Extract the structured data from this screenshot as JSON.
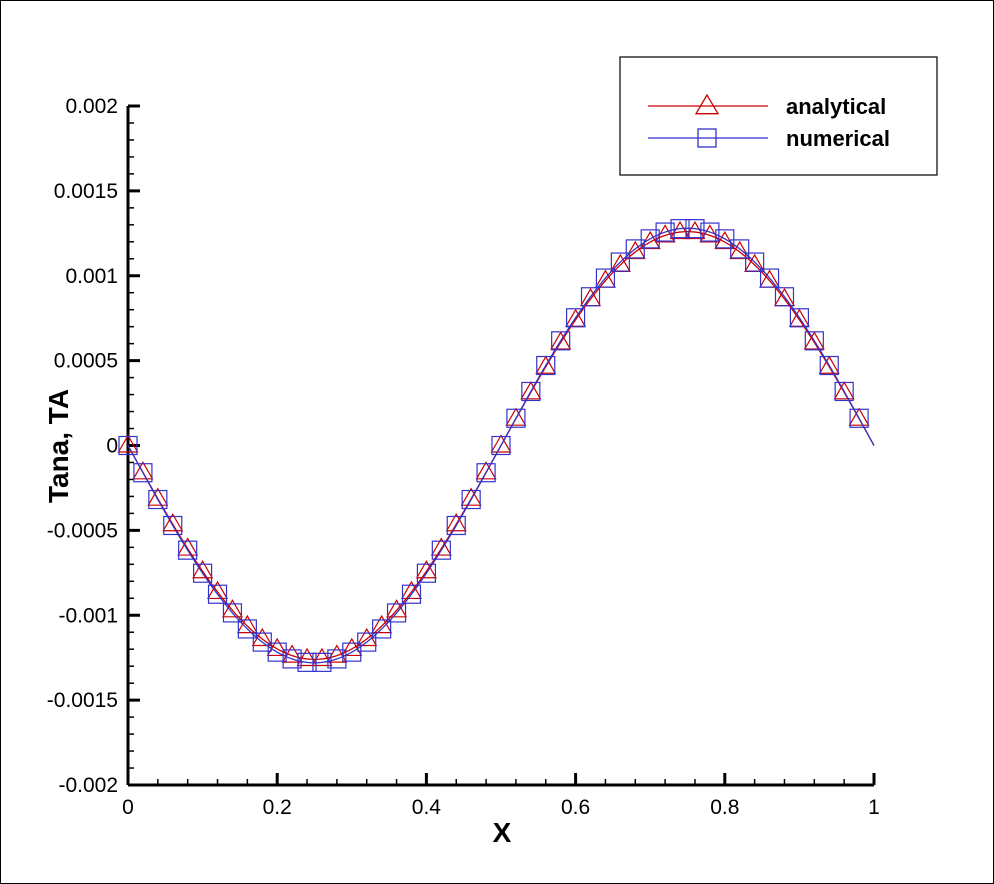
{
  "chart_data": {
    "type": "line",
    "xlabel": "X",
    "ylabel": "Tana, TA",
    "xlim": [
      0,
      1
    ],
    "ylim": [
      -0.002,
      0.002
    ],
    "x_ticks": [
      "0",
      "0.2",
      "0.4",
      "0.6",
      "0.8",
      "1"
    ],
    "y_ticks": [
      "-0.002",
      "-0.0015",
      "-0.001",
      "-0.0005",
      "0",
      "0.0005",
      "0.001",
      "0.0015",
      "0.002"
    ],
    "legend_position": "top-right",
    "grid": false,
    "series": [
      {
        "name": "analytical",
        "color": "#cc0000",
        "marker": "triangle",
        "function": "-0.00126*sin(2*pi*x)",
        "amplitude": 0.00126
      },
      {
        "name": "numerical",
        "color": "#3333cc",
        "marker": "square",
        "function": "-0.00128*sin(2*pi*x)",
        "amplitude": 0.00128
      }
    ]
  },
  "colors": {
    "analytical": "#cc0000",
    "numerical": "#3333cc",
    "axis": "#000000"
  }
}
